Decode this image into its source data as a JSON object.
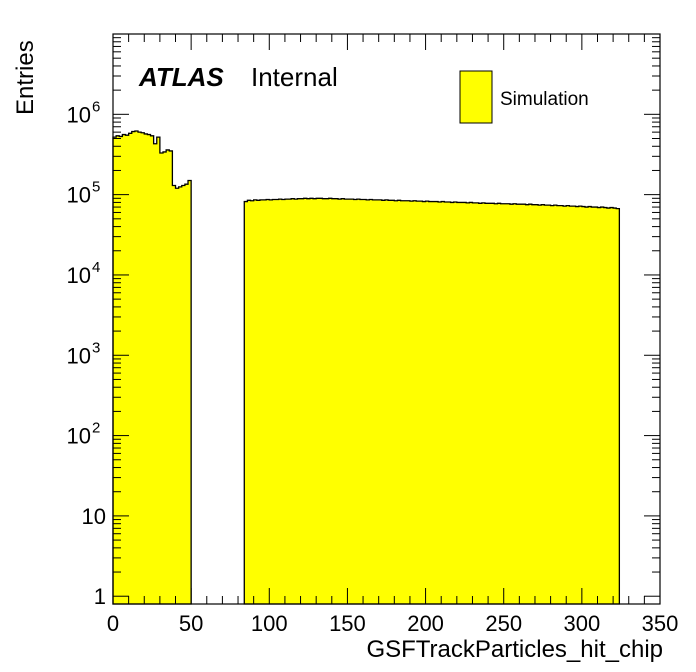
{
  "chart_data": {
    "type": "bar",
    "histogram": true,
    "xlabel": "GSFTrackParticles_hit_chip",
    "ylabel": "Entries",
    "xlim": [
      0,
      350
    ],
    "ylim": [
      0.8,
      10000000
    ],
    "yscale": "log",
    "grid": false,
    "legend": {
      "placement": "top-right",
      "entries": [
        {
          "label": "Simulation",
          "color": "#ffff00"
        }
      ]
    },
    "annotations": {
      "experiment": "ATLAS",
      "status": "Internal"
    },
    "x_ticks": [
      "0",
      "50",
      "100",
      "150",
      "200",
      "250",
      "300",
      "350"
    ],
    "x_tick_values": [
      0,
      50,
      100,
      150,
      200,
      250,
      300,
      350
    ],
    "y_ticks": [
      {
        "value": 1,
        "base": "1",
        "exp": ""
      },
      {
        "value": 10,
        "base": "10",
        "exp": ""
      },
      {
        "value": 100,
        "base": "10",
        "exp": "2"
      },
      {
        "value": 1000,
        "base": "10",
        "exp": "3"
      },
      {
        "value": 10000,
        "base": "10",
        "exp": "4"
      },
      {
        "value": 100000,
        "base": "10",
        "exp": "5"
      },
      {
        "value": 1000000,
        "base": "10",
        "exp": "6"
      }
    ],
    "bin_width": 2,
    "bin_edges_range": [
      0,
      324
    ],
    "segments": [
      {
        "x_start": 0,
        "values": [
          520000,
          540000,
          530000,
          560000,
          550000,
          580000,
          610000,
          620000,
          600000,
          590000,
          570000,
          560000,
          540000,
          430000,
          520000,
          330000,
          340000,
          360000,
          350000,
          130000,
          120000,
          125000,
          130000,
          135000,
          150000
        ]
      },
      {
        "x_start": 84,
        "values": [
          82000,
          85000,
          84000,
          86000,
          85000,
          86000,
          86000,
          87000,
          86000,
          87000,
          87000,
          88000,
          87000,
          88000,
          88000,
          89000,
          88000,
          89000,
          89000,
          90000,
          89000,
          90000,
          89000,
          90000,
          90000,
          89000,
          89000,
          90000,
          89000,
          89000,
          88000,
          89000,
          88000,
          88000,
          88000,
          87000,
          88000,
          87000,
          87000,
          86000,
          87000,
          86000,
          86000,
          86000,
          85000,
          86000,
          85000,
          85000,
          84000,
          85000,
          84000,
          84000,
          84000,
          83000,
          84000,
          83000,
          83000,
          82000,
          83000,
          82000,
          82000,
          82000,
          81000,
          82000,
          81000,
          81000,
          80000,
          81000,
          80000,
          80000,
          80000,
          79000,
          80000,
          79000,
          79000,
          78000,
          79000,
          78000,
          78000,
          78000,
          77000,
          78000,
          77000,
          77000,
          77000,
          76000,
          77000,
          76000,
          76000,
          76000,
          75000,
          76000,
          75000,
          75000,
          74000,
          75000,
          74000,
          74000,
          73000,
          74000,
          73000,
          73000,
          72000,
          73000,
          72000,
          72000,
          71000,
          72000,
          71000,
          70000,
          71000,
          70000,
          70000,
          69000,
          70000,
          69000,
          68000,
          69000,
          68000,
          67000
        ]
      }
    ]
  }
}
